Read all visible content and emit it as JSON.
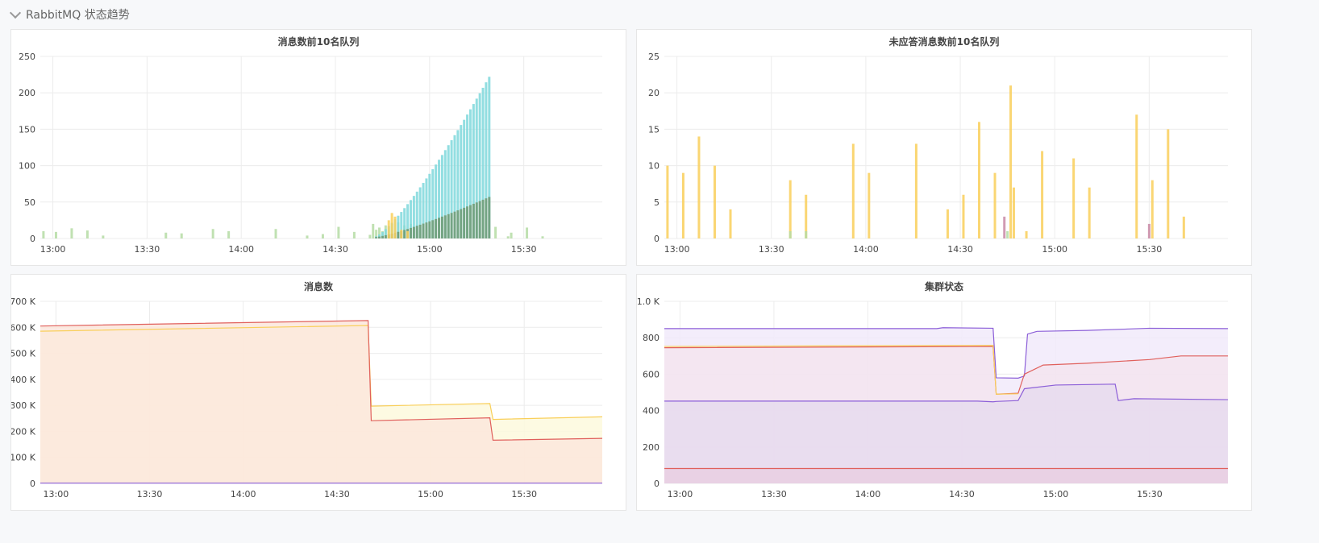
{
  "row": {
    "title": "RabbitMQ 状态趋势",
    "collapse_icon": "chevron-down-icon"
  },
  "panels": [
    {
      "title": "消息数前10名队列"
    },
    {
      "title": "未应答消息数前10名队列"
    },
    {
      "title": "消息数"
    },
    {
      "title": "集群状态"
    }
  ],
  "colors": {
    "green": "#b5dca4",
    "cyan": "#7fd8dc",
    "olive": "#6f9a72",
    "yellow": "#f9cf5a",
    "pink": "#c98aa6",
    "red": "#e0605c",
    "orange": "#f8d8c8",
    "purple": "#8c5fd8",
    "lightpurple": "#eadff4"
  },
  "chart_data": [
    {
      "type": "bar",
      "title": "消息数前10名队列",
      "xlim": [
        "12:56",
        "15:55"
      ],
      "ylim": [
        0,
        250
      ],
      "yticks": [
        "0",
        "50",
        "100",
        "150",
        "200",
        "250"
      ],
      "xticks": [
        {
          "t": "13:00",
          "label": "13:00"
        },
        {
          "t": "13:30",
          "label": "13:30"
        },
        {
          "t": "14:00",
          "label": "14:00"
        },
        {
          "t": "14:30",
          "label": "14:30"
        },
        {
          "t": "15:00",
          "label": "15:00"
        },
        {
          "t": "15:30",
          "label": "15:30"
        }
      ],
      "series": [
        {
          "color": "green",
          "points": [
            [
              "12:57",
              10
            ],
            [
              "13:01",
              9
            ],
            [
              "13:06",
              14
            ],
            [
              "13:11",
              11
            ],
            [
              "13:16",
              4
            ],
            [
              "13:36",
              8
            ],
            [
              "13:41",
              7
            ],
            [
              "13:51",
              13
            ],
            [
              "13:56",
              10
            ],
            [
              "14:11",
              13
            ],
            [
              "14:21",
              4
            ],
            [
              "14:26",
              6
            ],
            [
              "14:31",
              16
            ],
            [
              "14:36",
              9
            ],
            [
              "14:41",
              5
            ],
            [
              "14:42",
              20
            ],
            [
              "14:43",
              12
            ],
            [
              "14:44",
              15
            ],
            [
              "14:45",
              10
            ],
            [
              "14:46",
              18
            ],
            [
              "14:48",
              20
            ],
            [
              "14:50",
              22
            ],
            [
              "14:52",
              18
            ],
            [
              "14:54",
              20
            ],
            [
              "15:21",
              16
            ],
            [
              "15:25",
              3
            ],
            [
              "15:26",
              8
            ],
            [
              "15:31",
              15
            ],
            [
              "15:36",
              3
            ]
          ]
        },
        {
          "color": "cyan",
          "range": [
            "14:43",
            "15:19"
          ],
          "start": 3,
          "end": 222
        },
        {
          "color": "olive",
          "range": [
            "14:43",
            "15:19"
          ],
          "start": 2,
          "end": 57
        },
        {
          "color": "yellow",
          "points": [
            [
              "14:47",
              25
            ],
            [
              "14:48",
              35
            ],
            [
              "14:49",
              30
            ],
            [
              "14:51",
              12
            ],
            [
              "14:53",
              10
            ]
          ]
        }
      ]
    },
    {
      "type": "bar",
      "title": "未应答消息数前10名队列",
      "xlim": [
        "12:56",
        "15:55"
      ],
      "ylim": [
        0,
        25
      ],
      "yticks": [
        "0",
        "5",
        "10",
        "15",
        "20",
        "25"
      ],
      "xticks": [
        {
          "t": "13:00",
          "label": "13:00"
        },
        {
          "t": "13:30",
          "label": "13:30"
        },
        {
          "t": "14:00",
          "label": "14:00"
        },
        {
          "t": "14:30",
          "label": "14:30"
        },
        {
          "t": "15:00",
          "label": "15:00"
        },
        {
          "t": "15:30",
          "label": "15:30"
        }
      ],
      "series": [
        {
          "color": "yellow",
          "points": [
            [
              "12:57",
              10
            ],
            [
              "13:02",
              9
            ],
            [
              "13:07",
              14
            ],
            [
              "13:12",
              10
            ],
            [
              "13:17",
              4
            ],
            [
              "13:36",
              8
            ],
            [
              "13:41",
              6
            ],
            [
              "13:56",
              13
            ],
            [
              "14:01",
              9
            ],
            [
              "14:16",
              13
            ],
            [
              "14:26",
              4
            ],
            [
              "14:31",
              6
            ],
            [
              "14:36",
              16
            ],
            [
              "14:41",
              9
            ],
            [
              "14:46",
              21
            ],
            [
              "14:47",
              7
            ],
            [
              "14:51",
              1
            ],
            [
              "14:56",
              12
            ],
            [
              "15:06",
              11
            ],
            [
              "15:11",
              7
            ],
            [
              "15:26",
              17
            ],
            [
              "15:31",
              8
            ],
            [
              "15:36",
              15
            ],
            [
              "15:41",
              3
            ]
          ]
        },
        {
          "color": "green",
          "points": [
            [
              "13:36",
              1
            ],
            [
              "13:41",
              1
            ],
            [
              "14:45",
              1
            ]
          ]
        },
        {
          "color": "pink",
          "points": [
            [
              "14:44",
              3
            ],
            [
              "15:30",
              2
            ]
          ]
        }
      ]
    },
    {
      "type": "area",
      "title": "消息数",
      "xlim": [
        "12:55",
        "15:55"
      ],
      "ylim": [
        0,
        700000
      ],
      "yticks": [
        "0",
        "100 K",
        "200 K",
        "300 K",
        "400 K",
        "500 K",
        "600 K",
        "700 K"
      ],
      "xticks": [
        {
          "t": "13:00",
          "label": "13:00"
        },
        {
          "t": "13:30",
          "label": "13:30"
        },
        {
          "t": "14:00",
          "label": "14:00"
        },
        {
          "t": "14:30",
          "label": "14:30"
        },
        {
          "t": "15:00",
          "label": "15:00"
        },
        {
          "t": "15:30",
          "label": "15:30"
        }
      ],
      "series": [
        {
          "color": "yellow",
          "fill": "#fdf9dd",
          "points": [
            [
              "12:55",
              585000
            ],
            [
              "14:40",
              607000
            ],
            [
              "14:41",
              297000
            ],
            [
              "15:19",
              307000
            ],
            [
              "15:20",
              246000
            ],
            [
              "15:55",
              256000
            ]
          ]
        },
        {
          "color": "red",
          "fill": "#fbe6dc",
          "points": [
            [
              "12:55",
              605000
            ],
            [
              "14:40",
              626000
            ],
            [
              "14:41",
              241000
            ],
            [
              "15:19",
              252000
            ],
            [
              "15:20",
              166000
            ],
            [
              "15:55",
              173000
            ]
          ]
        },
        {
          "color": "purple",
          "fill": "none",
          "points": [
            [
              "12:55",
              1000
            ],
            [
              "15:55",
              1000
            ]
          ]
        }
      ]
    },
    {
      "type": "area",
      "title": "集群状态",
      "xlim": [
        "12:55",
        "15:55"
      ],
      "ylim": [
        0,
        1000
      ],
      "yticks": [
        "0",
        "200",
        "400",
        "600",
        "800",
        "1.0 K"
      ],
      "xticks": [
        {
          "t": "13:00",
          "label": "13:00"
        },
        {
          "t": "13:30",
          "label": "13:30"
        },
        {
          "t": "14:00",
          "label": "14:00"
        },
        {
          "t": "14:30",
          "label": "14:30"
        },
        {
          "t": "15:00",
          "label": "15:00"
        },
        {
          "t": "15:30",
          "label": "15:30"
        }
      ],
      "series": [
        {
          "color": "purple",
          "fill": "#f1eafa",
          "points": [
            [
              "12:55",
              850
            ],
            [
              "14:22",
              850
            ],
            [
              "14:24",
              855
            ],
            [
              "14:40",
              852
            ],
            [
              "14:41",
              580
            ],
            [
              "14:48",
              578
            ],
            [
              "14:50",
              590
            ],
            [
              "14:51",
              820
            ],
            [
              "14:54",
              835
            ],
            [
              "15:10",
              840
            ],
            [
              "15:30",
              852
            ],
            [
              "15:55",
              850
            ]
          ]
        },
        {
          "color": "red",
          "fill": "#f3e4ef",
          "points": [
            [
              "12:55",
              745
            ],
            [
              "14:40",
              752
            ],
            [
              "14:41",
              490
            ],
            [
              "14:48",
              495
            ],
            [
              "14:50",
              600
            ],
            [
              "14:56",
              650
            ],
            [
              "15:10",
              660
            ],
            [
              "15:30",
              680
            ],
            [
              "15:40",
              700
            ],
            [
              "15:55",
              700
            ]
          ]
        },
        {
          "color": "yellow",
          "fill": "none",
          "points": [
            [
              "12:55",
              752
            ],
            [
              "14:40",
              758
            ],
            [
              "14:41",
              490
            ],
            [
              "14:48",
              492
            ]
          ]
        },
        {
          "color": "purple",
          "fill": "#e6daee",
          "points": [
            [
              "12:55",
              452
            ],
            [
              "14:35",
              452
            ],
            [
              "14:40",
              448
            ],
            [
              "14:41",
              450
            ],
            [
              "14:48",
              455
            ],
            [
              "14:50",
              520
            ],
            [
              "15:00",
              540
            ],
            [
              "15:19",
              545
            ],
            [
              "15:20",
              455
            ],
            [
              "15:25",
              465
            ],
            [
              "15:55",
              460
            ]
          ]
        },
        {
          "color": "red",
          "fill": "#e9cfe2",
          "points": [
            [
              "12:55",
              82
            ],
            [
              "15:55",
              82
            ]
          ]
        }
      ]
    }
  ]
}
